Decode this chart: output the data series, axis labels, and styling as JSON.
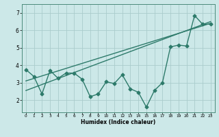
{
  "xlabel": "Humidex (Indice chaleur)",
  "ylabel": "",
  "bg_color": "#cce8e8",
  "line_color": "#2d7a6a",
  "grid_color": "#aacccc",
  "x_ticks": [
    0,
    1,
    2,
    3,
    4,
    5,
    6,
    7,
    8,
    9,
    10,
    11,
    12,
    13,
    14,
    15,
    16,
    17,
    18,
    19,
    20,
    21,
    22,
    23
  ],
  "y_ticks": [
    2,
    3,
    4,
    5,
    6,
    7
  ],
  "ylim": [
    1.3,
    7.5
  ],
  "xlim": [
    -0.5,
    23.5
  ],
  "line1_x": [
    0,
    1,
    2,
    3,
    4,
    5,
    6,
    7,
    8,
    9,
    10,
    11,
    12,
    13,
    14,
    15,
    16,
    17,
    18,
    19,
    20,
    21,
    22,
    23
  ],
  "line1_y": [
    3.75,
    3.35,
    2.35,
    3.7,
    3.25,
    3.55,
    3.55,
    3.2,
    2.2,
    2.35,
    3.05,
    2.95,
    3.45,
    2.65,
    2.45,
    1.6,
    2.55,
    3.0,
    5.05,
    5.15,
    5.1,
    6.85,
    6.35,
    6.35
  ],
  "line2_x": [
    0,
    23
  ],
  "line2_y": [
    3.1,
    6.4
  ],
  "line3_x": [
    0,
    23
  ],
  "line3_y": [
    2.55,
    6.5
  ],
  "marker": "D",
  "markersize": 2.5,
  "linewidth": 1.0
}
